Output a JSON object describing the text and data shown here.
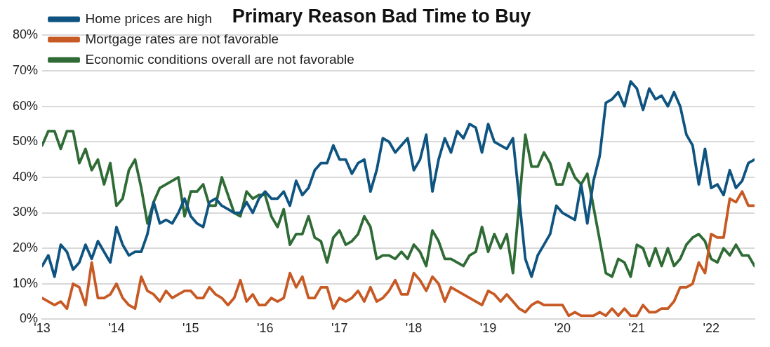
{
  "chart_data": {
    "type": "line",
    "title": "Primary Reason Bad Time to Buy",
    "xlim": [
      "2013-01",
      "2022-08"
    ],
    "xticks": [
      {
        "value": "2013-01",
        "label": "'13"
      },
      {
        "value": "2014-01",
        "label": "'14"
      },
      {
        "value": "2015-01",
        "label": "'15"
      },
      {
        "value": "2016-01",
        "label": "'16"
      },
      {
        "value": "2017-01",
        "label": "'17"
      },
      {
        "value": "2018-01",
        "label": "'18"
      },
      {
        "value": "2019-01",
        "label": "'19"
      },
      {
        "value": "2020-01",
        "label": "'20"
      },
      {
        "value": "2021-01",
        "label": "'21"
      },
      {
        "value": "2022-01",
        "label": "'22"
      }
    ],
    "ylim": [
      0,
      80
    ],
    "yticks": [
      {
        "value": 0,
        "label": "0%"
      },
      {
        "value": 10,
        "label": "10%"
      },
      {
        "value": 20,
        "label": "20%"
      },
      {
        "value": 30,
        "label": "30%"
      },
      {
        "value": 40,
        "label": "40%"
      },
      {
        "value": 50,
        "label": "50%"
      },
      {
        "value": 60,
        "label": "60%"
      },
      {
        "value": 70,
        "label": "70%"
      },
      {
        "value": 80,
        "label": "80%"
      }
    ],
    "grid": "y",
    "legend": "top left",
    "marker": "none",
    "line_style": "solid",
    "series": [
      {
        "name": "Home prices are high",
        "color": "#0f5480",
        "x": [
          "2013-01",
          "2013-02",
          "2013-03",
          "2013-04",
          "2013-05",
          "2013-06",
          "2013-07",
          "2013-08",
          "2013-09",
          "2013-10",
          "2013-11",
          "2013-12",
          "2014-01",
          "2014-02",
          "2014-03",
          "2014-04",
          "2014-05",
          "2014-06",
          "2014-07",
          "2014-08",
          "2014-09",
          "2014-10",
          "2014-11",
          "2014-12",
          "2015-01",
          "2015-02",
          "2015-03",
          "2015-04",
          "2015-05",
          "2015-06",
          "2015-07",
          "2015-08",
          "2015-09",
          "2015-10",
          "2015-11",
          "2015-12",
          "2016-01",
          "2016-02",
          "2016-03",
          "2016-04",
          "2016-05",
          "2016-06",
          "2016-07",
          "2016-08",
          "2016-09",
          "2016-10",
          "2016-11",
          "2016-12",
          "2017-01",
          "2017-02",
          "2017-03",
          "2017-04",
          "2017-05",
          "2017-06",
          "2017-07",
          "2017-08",
          "2017-09",
          "2017-10",
          "2017-11",
          "2017-12",
          "2018-01",
          "2018-02",
          "2018-03",
          "2018-04",
          "2018-05",
          "2018-06",
          "2018-07",
          "2018-08",
          "2018-09",
          "2018-10",
          "2018-11",
          "2018-12",
          "2019-01",
          "2019-02",
          "2019-03",
          "2019-04",
          "2019-05",
          "2019-07",
          "2019-08",
          "2019-09",
          "2019-10",
          "2019-11",
          "2019-12",
          "2020-01",
          "2020-02",
          "2020-03",
          "2020-04",
          "2020-05",
          "2020-06",
          "2020-07",
          "2020-08",
          "2020-09",
          "2020-10",
          "2020-11",
          "2020-12",
          "2021-01",
          "2021-02",
          "2021-03",
          "2021-04",
          "2021-05",
          "2021-06",
          "2021-07",
          "2021-08",
          "2021-09",
          "2021-10",
          "2021-11",
          "2021-12",
          "2022-01",
          "2022-02",
          "2022-03",
          "2022-04",
          "2022-05",
          "2022-06",
          "2022-07",
          "2022-08"
        ],
        "values": [
          15,
          18,
          12,
          21,
          19,
          14,
          16,
          21,
          17,
          22,
          19,
          16,
          26,
          21,
          18,
          19,
          19,
          24,
          33,
          27,
          28,
          27,
          30,
          34,
          29,
          27,
          26,
          33,
          34,
          32,
          31,
          30,
          30,
          33,
          30,
          34,
          36,
          34,
          34,
          36,
          32,
          39,
          35,
          37,
          42,
          44,
          44,
          49,
          45,
          45,
          41,
          44,
          45,
          36,
          42,
          51,
          50,
          47,
          49,
          51,
          42,
          45,
          52,
          36,
          45,
          51,
          47,
          53,
          51,
          55,
          54,
          47,
          55,
          50,
          49,
          48,
          51,
          17,
          12,
          18,
          21,
          24,
          32,
          30,
          29,
          28,
          38,
          27,
          39,
          46,
          61,
          62,
          64,
          60,
          67,
          65,
          59,
          65,
          62,
          63,
          60,
          64,
          60,
          52,
          49,
          38,
          48,
          37,
          38,
          35,
          42,
          37,
          39,
          44,
          45
        ]
      },
      {
        "name": "Mortgage rates are not favorable",
        "color": "#c75a24",
        "x": [
          "2013-01",
          "2013-02",
          "2013-03",
          "2013-04",
          "2013-05",
          "2013-06",
          "2013-07",
          "2013-08",
          "2013-09",
          "2013-10",
          "2013-11",
          "2013-12",
          "2014-01",
          "2014-02",
          "2014-03",
          "2014-04",
          "2014-05",
          "2014-06",
          "2014-07",
          "2014-08",
          "2014-09",
          "2014-10",
          "2014-11",
          "2014-12",
          "2015-01",
          "2015-02",
          "2015-03",
          "2015-04",
          "2015-05",
          "2015-06",
          "2015-07",
          "2015-08",
          "2015-09",
          "2015-10",
          "2015-11",
          "2015-12",
          "2016-01",
          "2016-02",
          "2016-03",
          "2016-04",
          "2016-05",
          "2016-06",
          "2016-07",
          "2016-08",
          "2016-09",
          "2016-10",
          "2016-11",
          "2016-12",
          "2017-01",
          "2017-02",
          "2017-03",
          "2017-04",
          "2017-05",
          "2017-06",
          "2017-07",
          "2017-08",
          "2017-09",
          "2017-10",
          "2017-11",
          "2017-12",
          "2018-01",
          "2018-02",
          "2018-03",
          "2018-04",
          "2018-05",
          "2018-06",
          "2018-07",
          "2018-12",
          "2019-01",
          "2019-02",
          "2019-03",
          "2019-04",
          "2019-05",
          "2019-06",
          "2019-07",
          "2019-08",
          "2019-09",
          "2019-10",
          "2020-01",
          "2020-02",
          "2020-03",
          "2020-04",
          "2020-06",
          "2020-07",
          "2020-08",
          "2020-09",
          "2020-10",
          "2020-11",
          "2020-12",
          "2021-01",
          "2021-02",
          "2021-03",
          "2021-04",
          "2021-05",
          "2021-06",
          "2021-07",
          "2021-08",
          "2021-09",
          "2021-10",
          "2021-11",
          "2021-12",
          "2022-01",
          "2022-02",
          "2022-03",
          "2022-04",
          "2022-05",
          "2022-06",
          "2022-07",
          "2022-08"
        ],
        "values": [
          6,
          5,
          4,
          5,
          3,
          10,
          9,
          4,
          16,
          6,
          6,
          7,
          10,
          6,
          4,
          3,
          12,
          8,
          7,
          5,
          8,
          6,
          7,
          8,
          8,
          6,
          6,
          9,
          7,
          6,
          4,
          6,
          11,
          5,
          7,
          4,
          4,
          6,
          5,
          6,
          13,
          9,
          12,
          6,
          6,
          9,
          9,
          3,
          6,
          5,
          6,
          8,
          5,
          9,
          5,
          6,
          8,
          11,
          7,
          7,
          13,
          11,
          8,
          12,
          10,
          5,
          9,
          4,
          8,
          7,
          5,
          7,
          5,
          3,
          2,
          4,
          5,
          4,
          4,
          1,
          2,
          1,
          1,
          2,
          1,
          3,
          1,
          3,
          1,
          1,
          4,
          2,
          2,
          3,
          3,
          5,
          9,
          9,
          10,
          16,
          13,
          24,
          23,
          23,
          34,
          33,
          36,
          32,
          32
        ]
      },
      {
        "name": "Economic conditions overall are not favorable",
        "color": "#2f6b35",
        "x": [
          "2013-01",
          "2013-02",
          "2013-03",
          "2013-04",
          "2013-05",
          "2013-06",
          "2013-07",
          "2013-08",
          "2013-09",
          "2013-10",
          "2013-11",
          "2013-12",
          "2014-01",
          "2014-02",
          "2014-03",
          "2014-04",
          "2014-05",
          "2014-06",
          "2014-07",
          "2014-08",
          "2014-11",
          "2014-12",
          "2015-01",
          "2015-02",
          "2015-03",
          "2015-04",
          "2015-05",
          "2015-06",
          "2015-07",
          "2015-08",
          "2015-09",
          "2015-10",
          "2015-11",
          "2015-12",
          "2016-01",
          "2016-02",
          "2016-03",
          "2016-04",
          "2016-05",
          "2016-06",
          "2016-07",
          "2016-08",
          "2016-09",
          "2016-10",
          "2016-11",
          "2016-12",
          "2017-01",
          "2017-02",
          "2017-03",
          "2017-04",
          "2017-05",
          "2017-06",
          "2017-07",
          "2017-08",
          "2017-09",
          "2017-10",
          "2017-11",
          "2017-12",
          "2018-01",
          "2018-02",
          "2018-03",
          "2018-04",
          "2018-05",
          "2018-06",
          "2018-07",
          "2018-08",
          "2018-09",
          "2018-10",
          "2018-11",
          "2018-12",
          "2019-01",
          "2019-02",
          "2019-03",
          "2019-04",
          "2019-05",
          "2019-07",
          "2019-08",
          "2019-09",
          "2019-10",
          "2019-11",
          "2019-12",
          "2020-01",
          "2020-02",
          "2020-03",
          "2020-04",
          "2020-05",
          "2020-08",
          "2020-09",
          "2020-10",
          "2020-11",
          "2020-12",
          "2021-01",
          "2021-02",
          "2021-03",
          "2021-04",
          "2021-05",
          "2021-06",
          "2021-07",
          "2021-08",
          "2021-09",
          "2021-10",
          "2021-11",
          "2021-12",
          "2022-01",
          "2022-02",
          "2022-03",
          "2022-04",
          "2022-05",
          "2022-06",
          "2022-07",
          "2022-08"
        ],
        "values": [
          49,
          53,
          53,
          48,
          53,
          53,
          44,
          48,
          42,
          45,
          38,
          44,
          32,
          34,
          42,
          45,
          37,
          27,
          33,
          37,
          40,
          29,
          36,
          36,
          38,
          32,
          32,
          40,
          35,
          30,
          29,
          36,
          34,
          35,
          35,
          29,
          26,
          31,
          21,
          24,
          24,
          29,
          23,
          22,
          16,
          23,
          25,
          21,
          22,
          24,
          29,
          26,
          17,
          18,
          18,
          17,
          19,
          17,
          21,
          19,
          15,
          25,
          22,
          17,
          17,
          16,
          15,
          18,
          19,
          26,
          19,
          24,
          20,
          24,
          13,
          52,
          43,
          43,
          47,
          44,
          38,
          38,
          44,
          40,
          38,
          41,
          13,
          12,
          17,
          16,
          12,
          21,
          20,
          15,
          20,
          15,
          20,
          15,
          17,
          21,
          23,
          24,
          22,
          17,
          16,
          20,
          18,
          21,
          18,
          18,
          15
        ]
      }
    ]
  }
}
